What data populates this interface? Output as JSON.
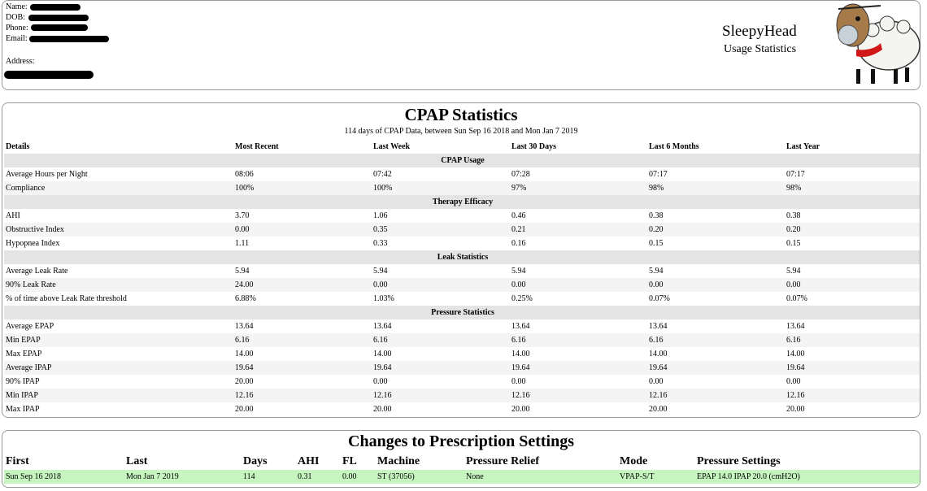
{
  "header": {
    "fields": [
      "Name:",
      "DOB:",
      "Phone:",
      "Email:",
      "Address:"
    ],
    "app_name": "SleepyHead",
    "app_subtitle": "Usage Statistics"
  },
  "stats": {
    "title": "CPAP Statistics",
    "subtitle": "114 days of CPAP Data, between Sun Sep 16 2018 and Mon Jan 7 2019",
    "columns": [
      "Details",
      "Most Recent",
      "Last Week",
      "Last 30 Days",
      "Last 6 Months",
      "Last Year"
    ],
    "sections": [
      {
        "title": "CPAP Usage",
        "rows": [
          [
            "Average Hours per Night",
            "08:06",
            "07:42",
            "07:28",
            "07:17",
            "07:17"
          ],
          [
            "Compliance",
            "100%",
            "100%",
            "97%",
            "98%",
            "98%"
          ]
        ]
      },
      {
        "title": "Therapy Efficacy",
        "rows": [
          [
            "AHI",
            "3.70",
            "1.06",
            "0.46",
            "0.38",
            "0.38"
          ],
          [
            "Obstructive Index",
            "0.00",
            "0.35",
            "0.21",
            "0.20",
            "0.20"
          ],
          [
            "Hypopnea Index",
            "1.11",
            "0.33",
            "0.16",
            "0.15",
            "0.15"
          ]
        ]
      },
      {
        "title": "Leak Statistics",
        "rows": [
          [
            "Average Leak Rate",
            "5.94",
            "5.94",
            "5.94",
            "5.94",
            "5.94"
          ],
          [
            "90% Leak Rate",
            "24.00",
            "0.00",
            "0.00",
            "0.00",
            "0.00"
          ],
          [
            "% of time above Leak Rate threshold",
            "6.88%",
            "1.03%",
            "0.25%",
            "0.07%",
            "0.07%"
          ]
        ]
      },
      {
        "title": "Pressure Statistics",
        "rows": [
          [
            "Average EPAP",
            "13.64",
            "13.64",
            "13.64",
            "13.64",
            "13.64"
          ],
          [
            "Min EPAP",
            "6.16",
            "6.16",
            "6.16",
            "6.16",
            "6.16"
          ],
          [
            "Max EPAP",
            "14.00",
            "14.00",
            "14.00",
            "14.00",
            "14.00"
          ],
          [
            "Average IPAP",
            "19.64",
            "19.64",
            "19.64",
            "19.64",
            "19.64"
          ],
          [
            "90% IPAP",
            "20.00",
            "0.00",
            "0.00",
            "0.00",
            "0.00"
          ],
          [
            "Min IPAP",
            "12.16",
            "12.16",
            "12.16",
            "12.16",
            "12.16"
          ],
          [
            "Max IPAP",
            "20.00",
            "20.00",
            "20.00",
            "20.00",
            "20.00"
          ]
        ]
      }
    ]
  },
  "prescription": {
    "title": "Changes to Prescription Settings",
    "columns": [
      "First",
      "Last",
      "Days",
      "AHI",
      "FL",
      "Machine",
      "Pressure Relief",
      "Mode",
      "Pressure Settings"
    ],
    "rows": [
      [
        "Sun Sep 16 2018",
        "Mon Jan 7 2019",
        "114",
        "0.31",
        "0.00",
        "ST (37056)",
        "None",
        "VPAP-S/T",
        "EPAP 14.0 IPAP 20.0 (cmH2O)"
      ]
    ]
  }
}
